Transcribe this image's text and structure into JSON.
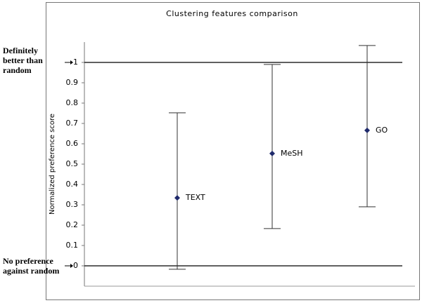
{
  "chart_data": {
    "type": "errorbar",
    "title": "Clustering features comparison",
    "y_label": "Normalized preference score",
    "categories": [
      "TEXT",
      "MeSH",
      "GO"
    ],
    "values": [
      0.334,
      0.552,
      0.666
    ],
    "lower": [
      -0.017,
      0.183,
      0.29
    ],
    "upper": [
      0.752,
      0.99,
      1.083
    ],
    "color": "#1f2a6b",
    "ylim": [
      -0.1,
      1.1
    ],
    "yticks": [
      0,
      0.1,
      0.2,
      0.3,
      0.4,
      0.5,
      0.6,
      0.7,
      0.8,
      0.9,
      1
    ],
    "reference_lines": [
      {
        "value": 1,
        "label": "Definitely better than random"
      },
      {
        "value": 0,
        "label": "No preference against random"
      }
    ]
  }
}
